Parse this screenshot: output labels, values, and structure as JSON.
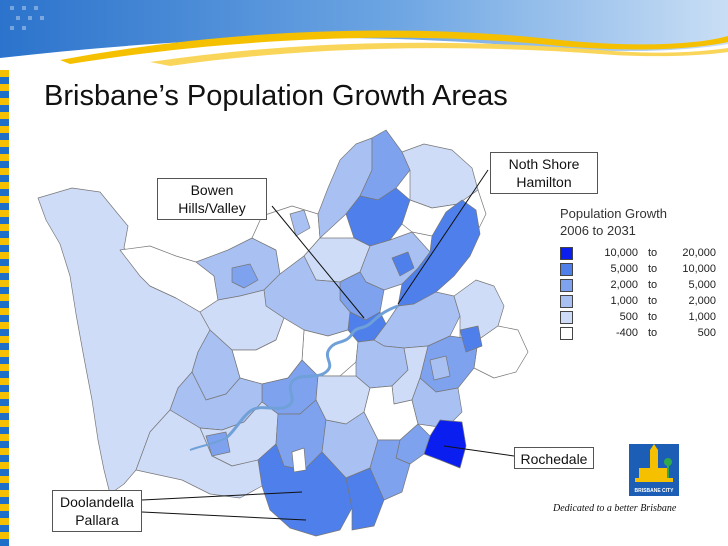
{
  "slide": {
    "title": "Brisbane’s Population Growth Areas"
  },
  "legend": {
    "title_line1": "Population Growth",
    "title_line2": "2006 to 2031",
    "classes": [
      {
        "low": "10,000",
        "high": "20,000",
        "color": "#0a1ef0"
      },
      {
        "low": "5,000",
        "high": "10,000",
        "color": "#4f7fea"
      },
      {
        "low": "2,000",
        "high": "5,000",
        "color": "#7ea2ee"
      },
      {
        "low": "1,000",
        "high": "2,000",
        "color": "#a9c0f3"
      },
      {
        "low": "500",
        "high": "1,000",
        "color": "#cfdcf8"
      },
      {
        "low": "-400",
        "high": "500",
        "color": "#ffffff"
      }
    ],
    "to_word": "to"
  },
  "callouts": {
    "bowen_line1": "Bowen",
    "bowen_line2": "Hills/Valley",
    "northshore_line1": "Noth Shore",
    "northshore_line2": "Hamilton",
    "rochedale": "Rochedale",
    "doolandella_line1": "Doolandella",
    "doolandella_line2": "Pallara"
  },
  "logo": {
    "text": "BRISBANE CITY"
  },
  "tagline": "Dedicated to a better Brisbane",
  "colors": {
    "banner_blue": "#1d6fc8",
    "banner_gold": "#f5c000",
    "river": "#6fa0d8",
    "boundary": "#777777"
  }
}
